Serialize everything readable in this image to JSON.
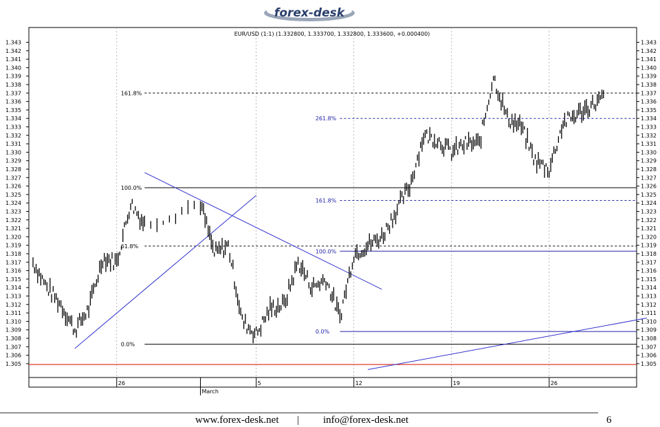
{
  "brand": {
    "logo_text": "forex-desk"
  },
  "footer": {
    "website": "www.forex-desk.net",
    "separator": "|",
    "email": "info@forex-desk.net",
    "page_number": "6"
  },
  "colors": {
    "trendline": "#3333cc",
    "fib_blue": "#2222aa",
    "fib_black": "#000000",
    "support_red": "#e03a2a",
    "candles": "#000000"
  },
  "chart_data": {
    "type": "line",
    "title": "EUR/USD (1:1) (1.332800, 1.333700, 1.332800, 1.333600, +0.000400)",
    "y_ticks": [
      "1.343",
      "1.342",
      "1.341",
      "1.340",
      "1.339",
      "1.338",
      "1.337",
      "1.336",
      "1.335",
      "1.334",
      "1.333",
      "1.332",
      "1.331",
      "1.330",
      "1.329",
      "1.328",
      "1.327",
      "1.326",
      "1.325",
      "1.324",
      "1.323",
      "1.322",
      "1.321",
      "1.320",
      "1.319",
      "1.318",
      "1.317",
      "1.316",
      "1.315",
      "1.314",
      "1.313",
      "1.312",
      "1.311",
      "1.310",
      "1.309",
      "1.308",
      "1.307",
      "1.306",
      "1.305"
    ],
    "ylim": [
      1.3045,
      1.3435
    ],
    "x_labels": [
      "26",
      "March",
      "5",
      "12",
      "19",
      "26"
    ],
    "x_dates": [
      "Feb 26",
      "Mar 1",
      "Mar 5",
      "Mar 12",
      "Mar 19",
      "Mar 26"
    ],
    "x_range": [
      "Feb 20",
      "Mar 30"
    ],
    "grid": "vertical dotted",
    "series": [
      {
        "x": [
          "Feb 20",
          "Feb 21",
          "Feb 22",
          "Feb 23",
          "Feb 24",
          "Feb 25",
          "Feb 26",
          "Feb 27",
          "Feb 28",
          "Mar 1",
          "Mar 2",
          "Mar 3",
          "Mar 4",
          "Mar 5",
          "Mar 6",
          "Mar 7",
          "Mar 8",
          "Mar 9",
          "Mar 10",
          "Mar 11",
          "Mar 12",
          "Mar 13",
          "Mar 14",
          "Mar 15",
          "Mar 16",
          "Mar 17",
          "Mar 18",
          "Mar 19",
          "Mar 20",
          "Mar 21",
          "Mar 22",
          "Mar 23",
          "Mar 24",
          "Mar 25",
          "Mar 26",
          "Mar 27",
          "Mar 28",
          "Mar 29",
          "Mar 30"
        ],
        "values": [
          1.317,
          1.314,
          1.312,
          1.309,
          1.3115,
          1.3175,
          1.317,
          1.324,
          1.3215,
          1.324,
          1.318,
          1.319,
          1.31,
          1.3085,
          1.3115,
          1.312,
          1.317,
          1.314,
          1.315,
          1.3105,
          1.318,
          1.319,
          1.32,
          1.323,
          1.326,
          1.332,
          1.3315,
          1.33,
          1.331,
          1.331,
          1.339,
          1.334,
          1.333,
          1.329,
          1.328,
          1.3335,
          1.3345,
          1.3355,
          1.3365
        ]
      }
    ],
    "fib_levels": [
      {
        "label": "161.8%",
        "value": 1.337,
        "color": "#000000",
        "style": "dashed"
      },
      {
        "label": "100.0%",
        "value": 1.3258,
        "color": "#000000",
        "style": "solid"
      },
      {
        "label": "61.8%",
        "value": 1.3189,
        "color": "#000000",
        "style": "dashed"
      },
      {
        "label": "0.0%",
        "value": 1.3073,
        "color": "#000000",
        "style": "solid"
      },
      {
        "label": "261.8%",
        "value": 1.334,
        "color": "#2222aa",
        "style": "dashed"
      },
      {
        "label": "161.8%",
        "value": 1.3243,
        "color": "#2222aa",
        "style": "dashed"
      },
      {
        "label": "100.0%",
        "value": 1.3183,
        "color": "#2222aa",
        "style": "solid"
      },
      {
        "label": "0.0%",
        "value": 1.3088,
        "color": "#2222aa",
        "style": "solid"
      }
    ],
    "support_level": 1.3049,
    "trendlines": [
      {
        "from": [
          "Feb 23",
          1.3068
        ],
        "to": [
          "Mar 5",
          1.3249
        ]
      },
      {
        "from": [
          "Feb 28",
          1.3276
        ],
        "to": [
          "Mar 14",
          1.3138
        ]
      },
      {
        "from": [
          "Mar 13",
          1.3043
        ],
        "to": [
          "Apr 2",
          1.3104
        ]
      }
    ]
  }
}
